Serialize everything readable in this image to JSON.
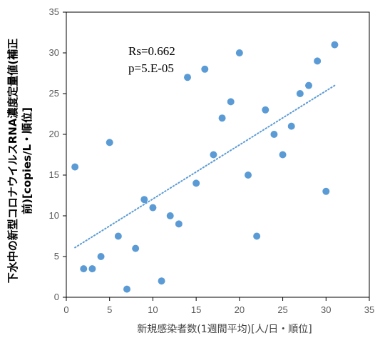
{
  "chart_data": {
    "type": "scatter",
    "title": "",
    "xlabel": "新規感染者数(1週間平均)[人/日・順位]",
    "ylabel_lines": [
      "下水中の新型コロナウイルスRNA濃度定量値(補正",
      "前)[copies/L・順位]"
    ],
    "xlim": [
      0,
      35
    ],
    "ylim": [
      0,
      35
    ],
    "xticks": [
      0,
      5,
      10,
      15,
      20,
      25,
      30,
      35
    ],
    "yticks": [
      0,
      5,
      10,
      15,
      20,
      25,
      30,
      35
    ],
    "grid": false,
    "legend": "none",
    "series": [
      {
        "points": [
          [
            1,
            16
          ],
          [
            2,
            3.5
          ],
          [
            3,
            3.5
          ],
          [
            4,
            5
          ],
          [
            5,
            19
          ],
          [
            6,
            7.5
          ],
          [
            7,
            1
          ],
          [
            8,
            6
          ],
          [
            9,
            12
          ],
          [
            10,
            11
          ],
          [
            11,
            2
          ],
          [
            12,
            10
          ],
          [
            13,
            9
          ],
          [
            14,
            27
          ],
          [
            15,
            14
          ],
          [
            16,
            28
          ],
          [
            17,
            17.5
          ],
          [
            18,
            22
          ],
          [
            19,
            24
          ],
          [
            20,
            30
          ],
          [
            21,
            15
          ],
          [
            22,
            7.5
          ],
          [
            23,
            23
          ],
          [
            24,
            20
          ],
          [
            25,
            17.5
          ],
          [
            26,
            21
          ],
          [
            27,
            25
          ],
          [
            28,
            26
          ],
          [
            29,
            29
          ],
          [
            30,
            13
          ],
          [
            31,
            31
          ]
        ]
      }
    ],
    "trendline": {
      "type": "linear",
      "style": "dotted",
      "from": [
        1,
        6.1
      ],
      "to": [
        31,
        26
      ]
    },
    "annotations": [
      "Rs=0.662",
      "p=5.E-05"
    ],
    "colors": {
      "marker": "#5b9bd5",
      "trendline": "#5b9bd5",
      "axis": "#000000",
      "tick_text": "#595959"
    }
  }
}
